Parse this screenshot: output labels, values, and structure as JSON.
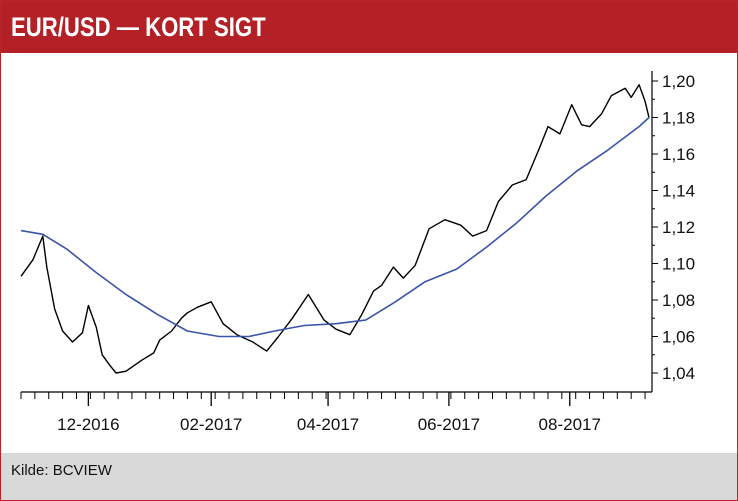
{
  "header": {
    "title": "EUR/USD — KORT SIGT",
    "background_color": "#b32025",
    "title_color": "#ffffff"
  },
  "footer": {
    "source": "Kilde: BCVIEW",
    "background_color": "#d9d9d9"
  },
  "chart_data": {
    "type": "line",
    "title": "EUR/USD — KORT SIGT",
    "xlabel": "",
    "ylabel": "",
    "ylim": [
      1.04,
      1.2
    ],
    "yticks": [
      "1,04",
      "1,06",
      "1,08",
      "1,10",
      "1,12",
      "1,14",
      "1,16",
      "1,18",
      "1,20"
    ],
    "xticks": [
      {
        "label": "12-2016",
        "x": "2016-12-01"
      },
      {
        "label": "02-2017",
        "x": "2017-02-01"
      },
      {
        "label": "04-2017",
        "x": "2017-04-01"
      },
      {
        "label": "06-2017",
        "x": "2017-06-01"
      },
      {
        "label": "08-2017",
        "x": "2017-08-01"
      }
    ],
    "xlim": [
      "2016-10-28",
      "2017-09-10"
    ],
    "y_axis_position": "right",
    "grid": false,
    "series": [
      {
        "color": "#000000",
        "x": [
          "2016-10-28",
          "2016-11-03",
          "2016-11-08",
          "2016-11-10",
          "2016-11-14",
          "2016-11-18",
          "2016-11-23",
          "2016-11-28",
          "2016-12-01",
          "2016-12-05",
          "2016-12-08",
          "2016-12-12",
          "2016-12-15",
          "2016-12-20",
          "2016-12-28",
          "2017-01-03",
          "2017-01-06",
          "2017-01-12",
          "2017-01-17",
          "2017-01-20",
          "2017-01-25",
          "2017-02-01",
          "2017-02-07",
          "2017-02-14",
          "2017-02-22",
          "2017-03-01",
          "2017-03-07",
          "2017-03-14",
          "2017-03-22",
          "2017-03-30",
          "2017-04-05",
          "2017-04-12",
          "2017-04-18",
          "2017-04-24",
          "2017-04-28",
          "2017-05-04",
          "2017-05-09",
          "2017-05-15",
          "2017-05-22",
          "2017-05-30",
          "2017-06-07",
          "2017-06-13",
          "2017-06-20",
          "2017-06-26",
          "2017-07-03",
          "2017-07-10",
          "2017-07-17",
          "2017-07-21",
          "2017-07-27",
          "2017-08-02",
          "2017-08-07",
          "2017-08-11",
          "2017-08-17",
          "2017-08-22",
          "2017-08-29",
          "2017-09-01",
          "2017-09-05",
          "2017-09-08",
          "2017-09-10"
        ],
        "y": [
          1.093,
          1.102,
          1.115,
          1.098,
          1.075,
          1.063,
          1.057,
          1.062,
          1.077,
          1.065,
          1.05,
          1.044,
          1.04,
          1.041,
          1.047,
          1.051,
          1.058,
          1.063,
          1.07,
          1.073,
          1.076,
          1.079,
          1.067,
          1.061,
          1.057,
          1.052,
          1.06,
          1.07,
          1.083,
          1.069,
          1.064,
          1.061,
          1.072,
          1.085,
          1.088,
          1.098,
          1.092,
          1.099,
          1.119,
          1.124,
          1.121,
          1.115,
          1.118,
          1.134,
          1.143,
          1.146,
          1.164,
          1.175,
          1.171,
          1.187,
          1.176,
          1.175,
          1.182,
          1.192,
          1.196,
          1.191,
          1.198,
          1.189,
          1.18
        ]
      },
      {
        "color": "#3a54a8",
        "x": [
          "2016-10-28",
          "2016-11-08",
          "2016-11-20",
          "2016-12-05",
          "2016-12-20",
          "2017-01-05",
          "2017-01-20",
          "2017-02-05",
          "2017-02-20",
          "2017-03-05",
          "2017-03-20",
          "2017-04-05",
          "2017-04-20",
          "2017-05-05",
          "2017-05-20",
          "2017-06-05",
          "2017-06-20",
          "2017-07-05",
          "2017-07-20",
          "2017-08-05",
          "2017-08-20",
          "2017-09-05",
          "2017-09-10"
        ],
        "y": [
          1.118,
          1.116,
          1.108,
          1.095,
          1.083,
          1.072,
          1.063,
          1.06,
          1.06,
          1.063,
          1.066,
          1.067,
          1.069,
          1.079,
          1.09,
          1.097,
          1.109,
          1.122,
          1.137,
          1.151,
          1.162,
          1.175,
          1.18
        ]
      }
    ]
  }
}
